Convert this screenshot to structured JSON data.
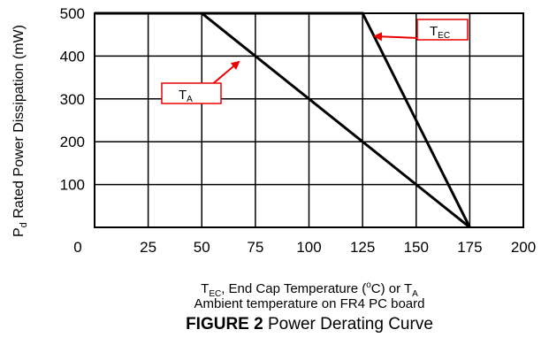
{
  "chart_data": {
    "type": "line",
    "x_ticks": [
      "0",
      "25",
      "50",
      "75",
      "100",
      "125",
      "150",
      "175",
      "200"
    ],
    "y_ticks": [
      "100",
      "200",
      "300",
      "400",
      "500"
    ],
    "xlim": [
      0,
      200
    ],
    "ylim": [
      0,
      500
    ],
    "grid": true,
    "ylabel_main": "P",
    "ylabel_sub": "d",
    "ylabel_rest": " Rated Power Dissipation (mW)",
    "xlabel_parts": {
      "t1": "T",
      "t1_sub": "EC",
      "t2": ", End Cap Temperature (",
      "t2_sup": "o",
      "t3": "C) or T",
      "t3_sub": "A",
      "line2": "Ambient temperature on FR4 PC board"
    },
    "title_bold": "FIGURE 2",
    "title_rest": " Power Derating Curve",
    "series": [
      {
        "name_main": "T",
        "name_sub": "A",
        "points": [
          [
            0,
            500
          ],
          [
            50,
            500
          ],
          [
            175,
            0
          ]
        ]
      },
      {
        "name_main": "T",
        "name_sub": "EC",
        "points": [
          [
            0,
            500
          ],
          [
            125,
            500
          ],
          [
            175,
            0
          ]
        ]
      }
    ],
    "annotation_color": "#ee0000",
    "line_color": "#000000"
  }
}
